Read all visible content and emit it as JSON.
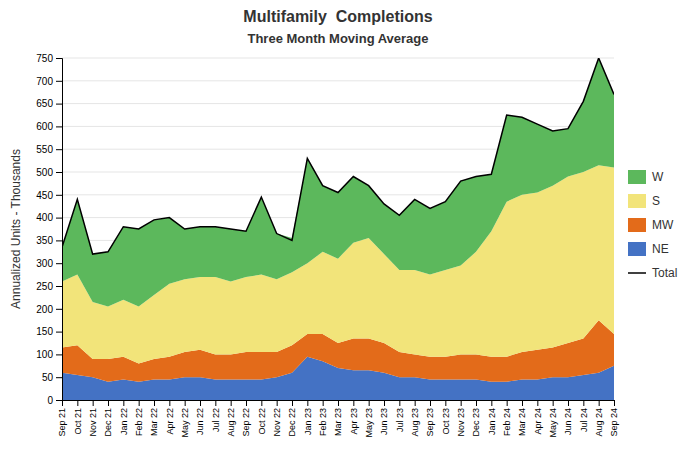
{
  "chart_data": {
    "type": "area",
    "stacked": true,
    "title": "Multifamily  Completions",
    "subtitle": "Three Month Moving Average",
    "y_label": "Annualized Units - Thousands",
    "categories": [
      "Sep 21",
      "Oct 21",
      "Nov 21",
      "Dec 21",
      "Jan 22",
      "Feb 22",
      "Mar 22",
      "Apr 22",
      "May 22",
      "Jun 22",
      "Jul 22",
      "Aug 22",
      "Sep 22",
      "Oct 22",
      "Nov 22",
      "Dec 22",
      "Jan 23",
      "Feb 23",
      "Mar 23",
      "Apr 23",
      "May 23",
      "Jun 23",
      "Jul 23",
      "Aug 23",
      "Sep 23",
      "Oct 23",
      "Nov 23",
      "Dec 23",
      "Jan 24",
      "Feb 24",
      "Mar 24",
      "Apr 24",
      "May 24",
      "Jun 24",
      "Jul 24",
      "Aug 24",
      "Sep 24"
    ],
    "series": [
      {
        "name": "NE",
        "type": "area",
        "color": "#4472c4",
        "values": [
          60,
          55,
          50,
          40,
          45,
          40,
          45,
          45,
          50,
          50,
          45,
          45,
          45,
          45,
          50,
          60,
          95,
          85,
          70,
          65,
          65,
          60,
          50,
          50,
          45,
          45,
          45,
          45,
          40,
          40,
          45,
          45,
          50,
          50,
          55,
          60,
          75
        ]
      },
      {
        "name": "MW",
        "type": "area",
        "color": "#e36b1a",
        "values": [
          55,
          65,
          40,
          50,
          50,
          40,
          45,
          50,
          55,
          60,
          55,
          55,
          60,
          60,
          55,
          60,
          50,
          60,
          55,
          70,
          70,
          65,
          55,
          50,
          50,
          50,
          55,
          55,
          55,
          55,
          60,
          65,
          65,
          75,
          80,
          115,
          70
        ]
      },
      {
        "name": "S",
        "type": "area",
        "color": "#f2e47a",
        "values": [
          145,
          155,
          125,
          115,
          125,
          125,
          140,
          160,
          160,
          160,
          170,
          160,
          165,
          170,
          160,
          160,
          155,
          180,
          185,
          210,
          220,
          195,
          180,
          185,
          180,
          190,
          195,
          225,
          275,
          340,
          345,
          345,
          355,
          365,
          365,
          340,
          365
        ]
      },
      {
        "name": "W",
        "type": "area",
        "color": "#5cb85c",
        "values": [
          75,
          165,
          105,
          120,
          160,
          170,
          165,
          145,
          110,
          110,
          110,
          115,
          100,
          170,
          100,
          75,
          230,
          145,
          145,
          145,
          115,
          110,
          120,
          155,
          145,
          150,
          185,
          165,
          125,
          190,
          170,
          150,
          120,
          105,
          155,
          235,
          160
        ]
      },
      {
        "name": "Total",
        "type": "line",
        "color": "#000000",
        "values": [
          335,
          440,
          320,
          325,
          380,
          375,
          395,
          400,
          375,
          380,
          380,
          375,
          370,
          445,
          365,
          350,
          530,
          470,
          455,
          490,
          470,
          430,
          405,
          440,
          420,
          435,
          480,
          490,
          495,
          625,
          620,
          605,
          590,
          595,
          655,
          750,
          670
        ]
      }
    ],
    "ylim": [
      0,
      750
    ],
    "yticks": [
      0,
      50,
      100,
      150,
      200,
      250,
      300,
      350,
      400,
      450,
      500,
      550,
      600,
      650,
      700,
      750
    ],
    "grid": true,
    "legend": "right"
  }
}
